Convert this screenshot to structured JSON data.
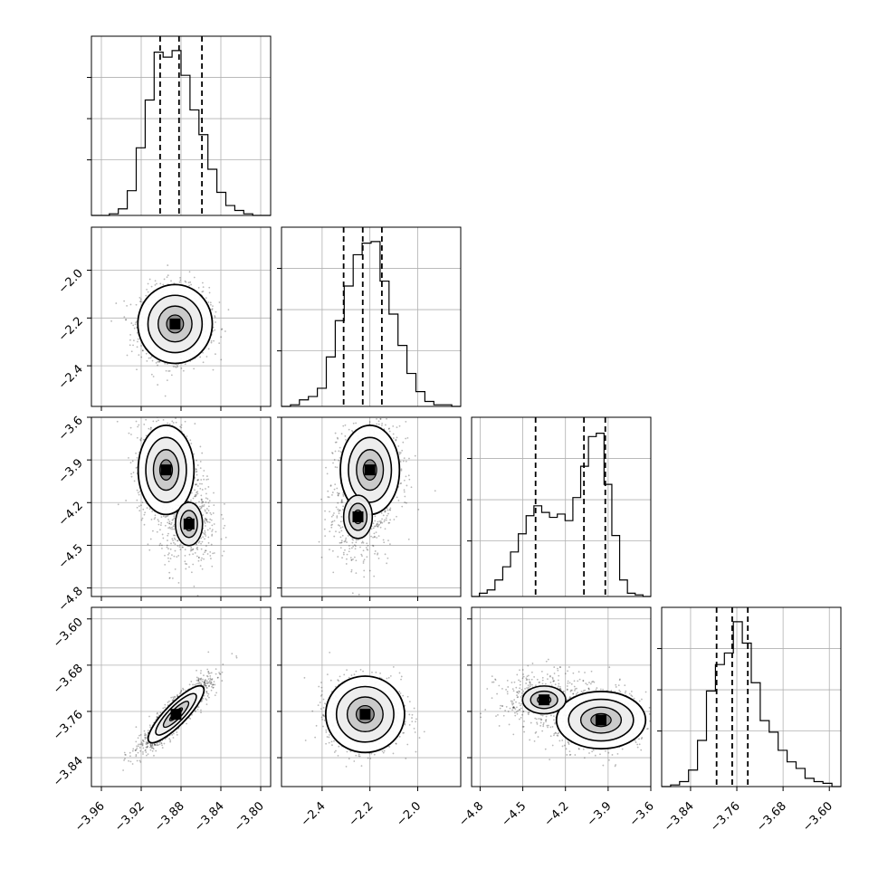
{
  "chart_data": {
    "type": "corner",
    "title": "",
    "n_params": 4,
    "params": [
      {
        "ticks": [
          -3.96,
          -3.92,
          -3.88,
          -3.84,
          -3.8
        ],
        "tick_labels": [
          "−3.96",
          "−3.92",
          "−3.88",
          "−3.84",
          "−3.80"
        ],
        "range": [
          -3.97,
          -3.79
        ],
        "mode": -3.882,
        "std": 0.017,
        "quantiles": [
          -3.901,
          -3.882,
          -3.859
        ],
        "hist_bins": [
          0,
          0,
          0.01,
          0.04,
          0.15,
          0.41,
          0.7,
          0.99,
          0.96,
          1.0,
          0.85,
          0.64,
          0.49,
          0.28,
          0.14,
          0.06,
          0.03,
          0.01,
          0,
          0
        ]
      },
      {
        "ticks": [
          -2.4,
          -2.2,
          -2.0
        ],
        "tick_labels": [
          "−2.4",
          "−2.2",
          "−2.0"
        ],
        "range": [
          -2.57,
          -1.82
        ],
        "mode": -2.22,
        "std": 0.075,
        "quantiles": [
          -2.31,
          -2.23,
          -2.15
        ],
        "hist_bins": [
          0,
          0.01,
          0.04,
          0.06,
          0.11,
          0.3,
          0.52,
          0.73,
          0.92,
          0.99,
          1.0,
          0.76,
          0.56,
          0.37,
          0.2,
          0.09,
          0.03,
          0.01,
          0.01,
          0
        ]
      },
      {
        "ticks": [
          -4.8,
          -4.5,
          -4.2,
          -3.9,
          -3.6
        ],
        "tick_labels": [
          "−4.8",
          "−4.5",
          "−4.2",
          "−3.9",
          "−3.6"
        ],
        "range": [
          -4.86,
          -3.6
        ],
        "mode": -3.95,
        "quantiles": [
          -4.41,
          -4.07,
          -3.92
        ],
        "hist_bins": [
          0,
          0.02,
          0.04,
          0.1,
          0.18,
          0.27,
          0.38,
          0.49,
          0.55,
          0.51,
          0.48,
          0.5,
          0.46,
          0.6,
          0.79,
          0.97,
          0.99,
          0.68,
          0.37,
          0.1,
          0.02,
          0.01,
          0
        ]
      },
      {
        "ticks": [
          -3.84,
          -3.76,
          -3.68,
          -3.6
        ],
        "tick_labels": [
          "−3.84",
          "−3.76",
          "−3.68",
          "−3.60"
        ],
        "range": [
          -3.89,
          -3.58
        ],
        "mode": -3.765,
        "std": 0.03,
        "quantiles": [
          -3.795,
          -3.768,
          -3.741
        ],
        "hist_bins": [
          0,
          0.01,
          0.03,
          0.1,
          0.28,
          0.58,
          0.74,
          0.81,
          1.0,
          0.87,
          0.63,
          0.4,
          0.33,
          0.22,
          0.15,
          0.11,
          0.05,
          0.03,
          0.02,
          0
        ]
      }
    ],
    "joint": [
      {
        "xi": 0,
        "yi": 1,
        "center": [
          -3.886,
          -2.225
        ],
        "correlation": 0.0
      },
      {
        "xi": 0,
        "yi": 2,
        "blobs": [
          {
            "center": [
              -3.895,
              -3.97
            ],
            "weight": 0.7
          },
          {
            "center": [
              -3.872,
              -4.35
            ],
            "weight": 0.3
          }
        ]
      },
      {
        "xi": 1,
        "yi": 2,
        "blobs": [
          {
            "center": [
              -2.2,
              -3.97
            ],
            "weight": 0.7
          },
          {
            "center": [
              -2.25,
              -4.3
            ],
            "weight": 0.3
          }
        ]
      },
      {
        "xi": 0,
        "yi": 3,
        "center": [
          -3.885,
          -3.765
        ],
        "correlation": 0.9
      },
      {
        "xi": 1,
        "yi": 3,
        "center": [
          -2.22,
          -3.765
        ],
        "correlation": 0.0
      },
      {
        "xi": 2,
        "yi": 3,
        "blobs": [
          {
            "center": [
              -3.95,
              -3.775
            ],
            "weight": 0.7
          },
          {
            "center": [
              -4.35,
              -3.74
            ],
            "weight": 0.3
          }
        ]
      }
    ],
    "grid": true,
    "colors": {
      "line": "#000000",
      "grid": "#b0b0b0",
      "points": "#000000"
    }
  }
}
